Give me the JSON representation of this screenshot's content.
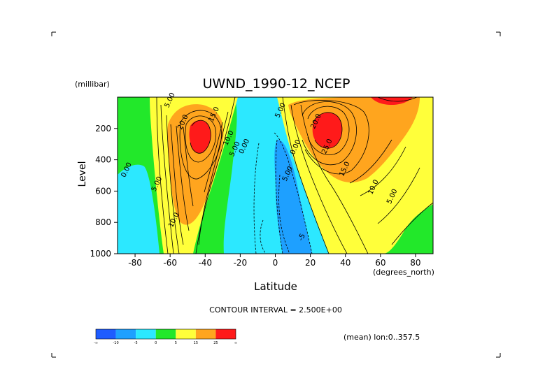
{
  "chart_data": {
    "type": "contour",
    "title": "UWND_1990-12_NCEP",
    "xlabel": "Latitude",
    "x_unit_label": "(degrees_north)",
    "ylabel": "Level",
    "y_unit_label": "(millibar)",
    "xlim": [
      -90,
      90
    ],
    "ylim": [
      1000,
      0
    ],
    "y_inverted": true,
    "x_ticks": [
      -80,
      -60,
      -40,
      -20,
      0,
      20,
      40,
      60,
      80
    ],
    "y_ticks": [
      200,
      400,
      600,
      800,
      1000
    ],
    "contour_interval_text": "CONTOUR INTERVAL = 2.500E+00",
    "contour_interval": 2.5,
    "mean_label": "(mean) lon:0..357.5",
    "fill_colors": [
      "#1e5cff",
      "#1ea0ff",
      "#2ce8ff",
      "#22e82a",
      "#ffff3a",
      "#ffa51e",
      "#ff1a1a"
    ],
    "colorbar_labels": [
      "-∞",
      "-10",
      "-5",
      "0",
      "5",
      "15",
      "25",
      "∞"
    ],
    "contour_labels": [
      {
        "text": "5.00",
        "lat": -59.1,
        "level": 25
      },
      {
        "text": "15.0",
        "lat": -33.9,
        "level": 115
      },
      {
        "text": "20.0",
        "lat": -51.6,
        "level": 165
      },
      {
        "text": "10.0",
        "lat": -25.6,
        "level": 267
      },
      {
        "text": "5.00",
        "lat": -22.0,
        "level": 337
      },
      {
        "text": "0.00",
        "lat": -16.6,
        "level": 320
      },
      {
        "text": "0.00",
        "lat": -83.8,
        "level": 470
      },
      {
        "text": "5.00",
        "lat": -66.5,
        "level": 560
      },
      {
        "text": "10.0",
        "lat": -56.8,
        "level": 790
      },
      {
        "text": "5.00",
        "lat": 4.0,
        "level": 90
      },
      {
        "text": "20.0",
        "lat": 24.3,
        "level": 160
      },
      {
        "text": "25.0",
        "lat": 30.6,
        "level": 320
      },
      {
        "text": "0.00",
        "lat": 12.6,
        "level": 325
      },
      {
        "text": "5.00",
        "lat": 8.1,
        "level": 495
      },
      {
        "text": "15.0",
        "lat": 40.6,
        "level": 465
      },
      {
        "text": "10.0",
        "lat": 57.0,
        "level": 580
      },
      {
        "text": "5.00",
        "lat": 67.7,
        "level": 640
      },
      {
        "text": "-5",
        "lat": 16.2,
        "level": 900
      }
    ]
  }
}
